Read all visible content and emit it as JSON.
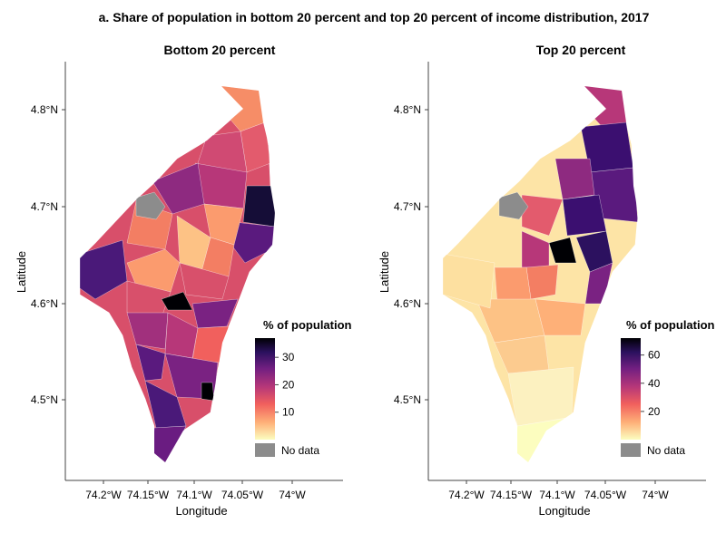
{
  "figure": {
    "title": "a. Share of population in bottom 20 percent and top 20 percent of income distribution, 2017",
    "colors": {
      "no_data": "#8c8c8c",
      "scale": [
        "#fcfdbf",
        "#feb078",
        "#f1605d",
        "#b73779",
        "#721f81",
        "#2c115f",
        "#000004"
      ]
    }
  },
  "panels": [
    {
      "title": "Bottom 20 percent",
      "x_label": "Longitude",
      "y_label": "Latitude",
      "x_ticks": [
        "74.2°W",
        "74.15°W",
        "74.1°W",
        "74.05°W",
        "74°W"
      ],
      "y_ticks": [
        "4.8°N",
        "4.7°N",
        "4.6°N",
        "4.5°N"
      ],
      "legend": {
        "title": "% of population",
        "ticks": [
          30,
          20,
          10
        ],
        "tick_labels": [
          "30",
          "20",
          "10"
        ],
        "max": 37,
        "no_data_label": "No data"
      }
    },
    {
      "title": "Top 20 percent",
      "x_label": "Longitude",
      "y_label": "Latitude",
      "x_ticks": [
        "74.2°W",
        "74.15°W",
        "74.1°W",
        "74.05°W",
        "74°W"
      ],
      "y_ticks": [
        "4.8°N",
        "4.7°N",
        "4.6°N",
        "4.5°N"
      ],
      "legend": {
        "title": "% of population",
        "ticks": [
          60,
          40,
          20
        ],
        "tick_labels": [
          "60",
          "40",
          "20"
        ],
        "max": 72,
        "no_data_label": "No data"
      }
    }
  ]
}
